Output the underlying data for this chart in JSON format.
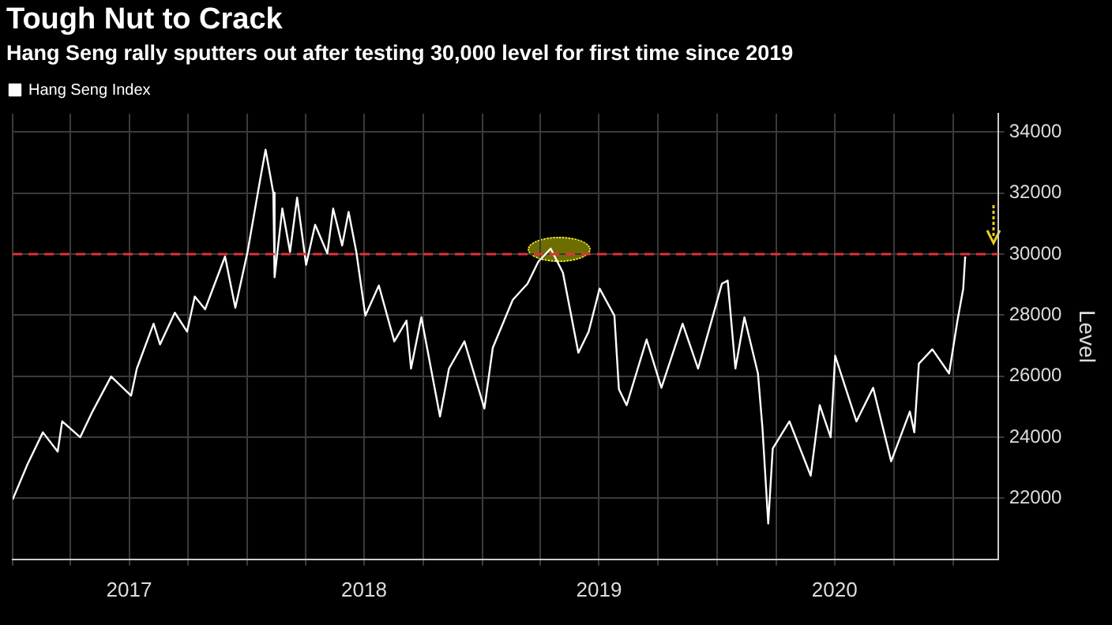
{
  "chart_data": {
    "type": "line",
    "title": "Tough Nut to Crack",
    "subtitle": "Hang Seng rally sputters out after testing 30,000 level for first time since 2019",
    "ylabel": "Level",
    "legend": "top left",
    "grid": true,
    "marker": "none",
    "line_style": "solid",
    "x": [
      "2017-01-01",
      "2017-01-24",
      "2017-02-17",
      "2017-03-12",
      "2017-03-19",
      "2017-04-16",
      "2017-05-05",
      "2017-06-03",
      "2017-07-04",
      "2017-07-13",
      "2017-08-08",
      "2017-08-18",
      "2017-09-10",
      "2017-09-29",
      "2017-10-11",
      "2017-10-27",
      "2017-11-27",
      "2017-12-13",
      "2018-01-01",
      "2018-01-20",
      "2018-01-29",
      "2018-02-10",
      "2018-02-12",
      "2018-02-24",
      "2018-03-08",
      "2018-03-19",
      "2018-04-02",
      "2018-04-16",
      "2018-05-05",
      "2018-05-14",
      "2018-05-28",
      "2018-06-07",
      "2018-06-19",
      "2018-07-03",
      "2018-07-24",
      "2018-08-17",
      "2018-09-05",
      "2018-09-12",
      "2018-09-28",
      "2018-10-27",
      "2018-11-10",
      "2018-12-04",
      "2019-01-04",
      "2019-01-17",
      "2019-02-17",
      "2019-03-12",
      "2019-03-29",
      "2019-04-17",
      "2019-05-06",
      "2019-05-30",
      "2019-06-15",
      "2019-07-02",
      "2019-07-25",
      "2019-08-01",
      "2019-08-13",
      "2019-09-13",
      "2019-10-06",
      "2019-11-08",
      "2019-12-02",
      "2019-12-21",
      "2020-01-08",
      "2020-01-17",
      "2020-01-29",
      "2020-02-12",
      "2020-03-04",
      "2020-03-11",
      "2020-03-20",
      "2020-03-27",
      "2020-04-22",
      "2020-05-25",
      "2020-06-08",
      "2020-06-25",
      "2020-07-02",
      "2020-08-04",
      "2020-08-30",
      "2020-09-27",
      "2020-10-26",
      "2020-11-02",
      "2020-11-09",
      "2020-11-30",
      "2020-12-26",
      "2021-01-08",
      "2021-01-17",
      "2021-01-20"
    ],
    "series": [
      {
        "name": "Hang Seng Index",
        "color": "#ffffff",
        "values": [
          21960,
          23110,
          24160,
          23530,
          24520,
          24000,
          24840,
          25990,
          25360,
          26250,
          27720,
          27040,
          28080,
          27460,
          28610,
          28190,
          29920,
          28240,
          30070,
          32370,
          33420,
          32010,
          29240,
          31490,
          30070,
          31850,
          29650,
          30960,
          30020,
          31490,
          30280,
          31380,
          30070,
          27980,
          28970,
          27140,
          27820,
          26250,
          27930,
          24680,
          26250,
          27140,
          24940,
          26930,
          28500,
          29030,
          29760,
          30180,
          29390,
          26770,
          27460,
          28870,
          27980,
          25570,
          25050,
          27200,
          25620,
          27720,
          26250,
          27670,
          29030,
          29130,
          26250,
          27930,
          26090,
          24310,
          21170,
          23630,
          24520,
          22740,
          25050,
          24000,
          26670,
          24520,
          25620,
          23210,
          24840,
          24160,
          26410,
          26880,
          26090,
          27820,
          28870,
          29920
        ]
      }
    ],
    "ylim": [
      20000,
      34600
    ],
    "yticks": [
      22000,
      24000,
      26000,
      28000,
      30000,
      32000,
      34000
    ],
    "xlim": [
      "2017-01-01",
      "2021-03-12"
    ],
    "xticks": [
      {
        "value": "2017-01-01",
        "label": null
      },
      {
        "value": "2017-04-01",
        "label": null
      },
      {
        "value": "2017-07-01",
        "label": "2017"
      },
      {
        "value": "2017-10-01",
        "label": null
      },
      {
        "value": "2018-01-01",
        "label": null
      },
      {
        "value": "2018-04-01",
        "label": null
      },
      {
        "value": "2018-07-01",
        "label": "2018"
      },
      {
        "value": "2018-10-01",
        "label": null
      },
      {
        "value": "2019-01-01",
        "label": null
      },
      {
        "value": "2019-04-01",
        "label": null
      },
      {
        "value": "2019-07-01",
        "label": "2019"
      },
      {
        "value": "2019-10-01",
        "label": null
      },
      {
        "value": "2020-01-01",
        "label": null
      },
      {
        "value": "2020-04-01",
        "label": null
      },
      {
        "value": "2020-07-01",
        "label": "2020"
      },
      {
        "value": "2020-10-01",
        "label": null
      },
      {
        "value": "2021-01-01",
        "label": null
      }
    ],
    "ref_lines": [
      {
        "axis": "y",
        "value": 30000,
        "color": "#e0323a",
        "line_style": "dashed"
      }
    ]
  }
}
